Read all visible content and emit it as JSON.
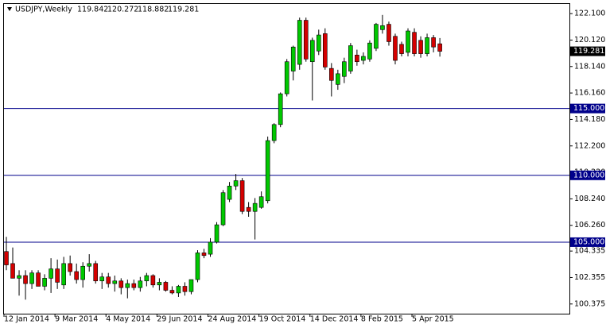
{
  "chart_data": {
    "type": "candlestick",
    "title": "USDJPY,Weekly",
    "categories": [
      "12 Jan 2014",
      null,
      null,
      null,
      null,
      null,
      null,
      null,
      "9 Mar 2014",
      null,
      null,
      null,
      null,
      null,
      null,
      null,
      "4 May 2014",
      null,
      null,
      null,
      null,
      null,
      null,
      null,
      "29 Jun 2014",
      null,
      null,
      null,
      null,
      null,
      null,
      null,
      "24 Aug 2014",
      null,
      null,
      null,
      null,
      null,
      null,
      null,
      "19 Oct 2014",
      null,
      null,
      null,
      null,
      null,
      null,
      null,
      "14 Dec 2014",
      null,
      null,
      null,
      null,
      null,
      null,
      null,
      "8 Feb 2015",
      null,
      null,
      null,
      null,
      null,
      null,
      null,
      "5 Apr 2015",
      null,
      null,
      null,
      null
    ],
    "open": [
      104.3,
      103.4,
      102.3,
      102.5,
      101.9,
      102.7,
      101.7,
      102.3,
      103.0,
      101.8,
      103.4,
      102.8,
      102.2,
      103.2,
      103.4,
      102.1,
      102.4,
      101.9,
      102.1,
      101.6,
      101.9,
      101.6,
      102.1,
      102.5,
      101.8,
      102.0,
      101.4,
      101.2,
      101.7,
      101.3,
      102.2,
      104.2,
      104.1,
      105.0,
      106.3,
      108.2,
      109.2,
      109.6,
      107.6,
      107.3,
      107.6,
      108.1,
      112.6,
      113.8,
      116.1,
      117.8,
      118.3,
      121.6,
      118.5,
      119.3,
      120.6,
      118.0,
      116.8,
      117.4,
      117.8,
      119.0,
      118.6,
      118.7,
      119.5,
      120.9,
      121.3,
      120.4,
      119.8,
      119.2,
      120.7,
      120.1,
      119.1,
      120.3,
      119.842
    ],
    "high": [
      105.4,
      104.6,
      102.9,
      102.9,
      102.9,
      102.9,
      102.6,
      103.8,
      103.7,
      103.9,
      104.0,
      103.4,
      103.5,
      104.1,
      103.6,
      102.7,
      102.7,
      102.5,
      102.3,
      102.2,
      102.2,
      102.4,
      102.7,
      102.6,
      102.3,
      102.1,
      101.7,
      101.8,
      102.0,
      102.0,
      104.4,
      104.5,
      105.3,
      106.5,
      108.9,
      109.5,
      110.1,
      109.8,
      108.0,
      108.3,
      108.8,
      112.9,
      113.9,
      116.2,
      118.7,
      119.7,
      121.8,
      121.8,
      120.3,
      120.9,
      121.0,
      118.4,
      117.9,
      118.8,
      119.9,
      119.4,
      119.2,
      120.1,
      121.4,
      122.0,
      121.5,
      120.6,
      120.0,
      121.0,
      121.0,
      120.4,
      120.6,
      120.5,
      120.272
    ],
    "low": [
      102.9,
      102.3,
      101.0,
      100.7,
      101.5,
      101.7,
      101.4,
      101.2,
      101.5,
      101.5,
      102.5,
      101.9,
      101.6,
      102.8,
      101.9,
      101.5,
      101.6,
      101.3,
      101.1,
      100.8,
      101.4,
      101.3,
      101.7,
      101.6,
      101.4,
      101.3,
      101.1,
      100.9,
      101.0,
      101.1,
      102.0,
      103.8,
      103.9,
      104.9,
      106.2,
      108.0,
      108.9,
      107.1,
      106.9,
      105.2,
      107.5,
      107.9,
      112.4,
      113.6,
      115.9,
      117.1,
      117.9,
      118.5,
      115.6,
      119.0,
      117.9,
      115.9,
      116.4,
      116.9,
      117.6,
      118.2,
      118.3,
      118.5,
      119.3,
      120.6,
      119.7,
      118.3,
      118.9,
      118.9,
      118.9,
      118.8,
      118.9,
      119.2,
      118.882
    ],
    "close": [
      103.3,
      102.3,
      102.5,
      101.9,
      102.7,
      101.7,
      102.3,
      103.0,
      102.0,
      103.4,
      102.8,
      102.2,
      103.2,
      103.4,
      102.1,
      102.4,
      101.9,
      102.1,
      101.6,
      101.9,
      101.6,
      102.1,
      102.5,
      101.8,
      102.0,
      101.4,
      101.2,
      101.7,
      101.3,
      102.2,
      104.2,
      104.0,
      105.0,
      106.3,
      108.7,
      109.2,
      109.6,
      107.3,
      107.3,
      107.9,
      108.4,
      112.6,
      113.8,
      116.1,
      118.5,
      119.6,
      121.6,
      118.7,
      120.1,
      120.5,
      118.1,
      117.1,
      117.6,
      118.5,
      119.7,
      118.5,
      118.9,
      119.9,
      121.3,
      121.2,
      120.0,
      118.6,
      119.1,
      120.8,
      119.1,
      119.1,
      120.3,
      119.6,
      119.281
    ],
    "up_color": "#00c800",
    "down_color": "#d40000",
    "wick_color": "#000000",
    "ylim": [
      99.65,
      122.82
    ],
    "yticks": [
      100.375,
      102.355,
      104.335,
      {
        "value": 106.26,
        "label": "106.260"
      },
      {
        "value": 108.24,
        "label": "108.240"
      },
      {
        "value": 110.22,
        "label": "110.220"
      },
      {
        "value": 112.2,
        "label": "112.200"
      },
      {
        "value": 114.18,
        "label": "114.180"
      },
      {
        "value": 116.16,
        "label": "116.160"
      },
      {
        "value": 118.14,
        "label": "118.140"
      },
      {
        "value": 120.12,
        "label": "120.120"
      },
      {
        "value": 122.1,
        "label": "122.100"
      }
    ],
    "levels": [
      {
        "value": 115,
        "label": "115.000"
      },
      {
        "value": 110,
        "label": "110.000"
      },
      {
        "value": 105,
        "label": "105.000"
      }
    ],
    "level_color": "#00008b",
    "price_label_color": "#000000"
  }
}
